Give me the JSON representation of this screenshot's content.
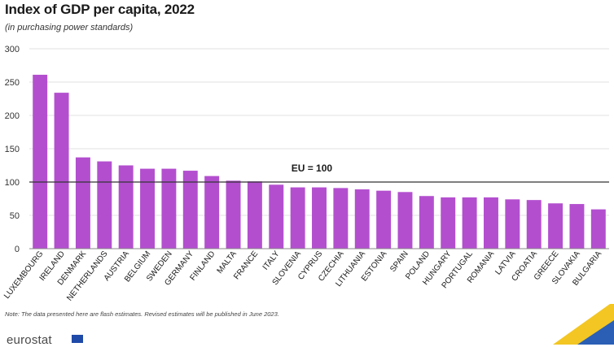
{
  "header": {
    "title": "Index of GDP per capita, 2022",
    "subtitle": "(in purchasing power standards)"
  },
  "note": "Note: The data presented here are flash estimates. Revised estimates will be published in June 2023.",
  "footer": {
    "logo_text": "eurostat"
  },
  "colors": {
    "bar": "#b34fcf",
    "reference_line": "#333333",
    "grid": "#d9d9d9"
  },
  "chart_data": {
    "type": "bar",
    "title": "Index of GDP per capita, 2022",
    "subtitle": "(in purchasing power standards)",
    "xlabel": "",
    "ylabel": "",
    "ylim": [
      0,
      300
    ],
    "yticks": [
      0,
      50,
      100,
      150,
      200,
      250,
      300
    ],
    "grid": true,
    "categories": [
      "LUXEMBOURG",
      "IRELAND",
      "DENMARK",
      "NETHERLANDS",
      "AUSTRIA",
      "BELGIUM",
      "SWEDEN",
      "GERMANY",
      "FINLAND",
      "MALTA",
      "FRANCE",
      "ITALY",
      "SLOVENIA",
      "CYPRUS",
      "CZECHIA",
      "LITHUANIA",
      "ESTONIA",
      "SPAIN",
      "POLAND",
      "HUNGARY",
      "PORTUGAL",
      "ROMANIA",
      "LATVIA",
      "CROATIA",
      "GREECE",
      "SLOVAKIA",
      "BULGARIA"
    ],
    "values": [
      261,
      234,
      137,
      131,
      125,
      120,
      120,
      117,
      109,
      102,
      101,
      96,
      92,
      92,
      91,
      89,
      87,
      85,
      79,
      77,
      77,
      77,
      74,
      73,
      68,
      67,
      59
    ],
    "reference_line": {
      "value": 100,
      "label": "EU = 100"
    }
  }
}
